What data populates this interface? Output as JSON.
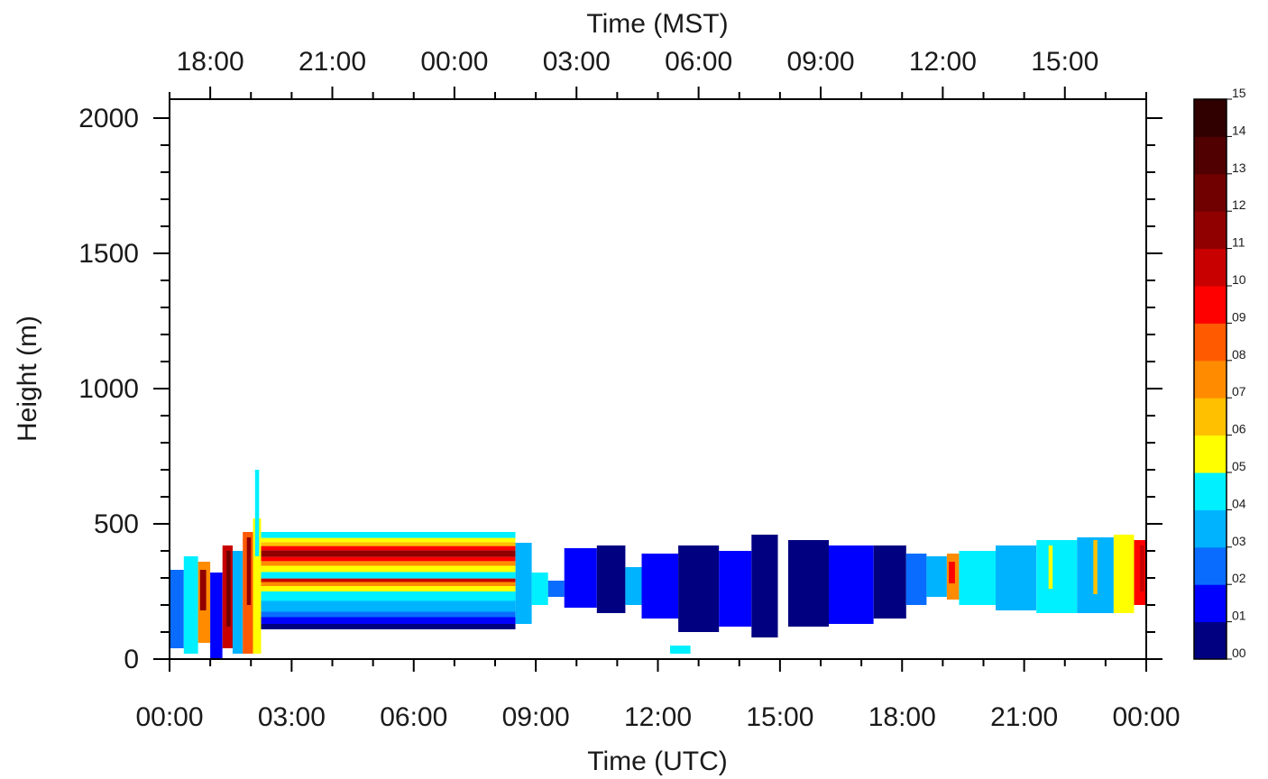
{
  "chart_data": {
    "type": "heatmap",
    "top_axis": {
      "label": "Time (MST)",
      "ticks": [
        "18:00",
        "21:00",
        "00:00",
        "03:00",
        "06:00",
        "09:00",
        "12:00",
        "15:00"
      ],
      "tick_hours_utc": [
        1,
        4,
        7,
        10,
        13,
        16,
        19,
        22
      ]
    },
    "x_axis": {
      "label": "Time (UTC)",
      "ticks": [
        "00:00",
        "03:00",
        "06:00",
        "09:00",
        "12:00",
        "15:00",
        "18:00",
        "21:00",
        "00:00"
      ],
      "range_hours": [
        0,
        24
      ]
    },
    "y_axis": {
      "label": "Height (m)",
      "ticks": [
        "0",
        "500",
        "1000",
        "1500",
        "2000"
      ],
      "tick_values": [
        0,
        500,
        1000,
        1500,
        2000
      ],
      "range": [
        0,
        2000
      ]
    },
    "colorbar": {
      "labels": [
        "00",
        "01",
        "02",
        "03",
        "04",
        "05",
        "06",
        "07",
        "08",
        "09",
        "10",
        "11",
        "12",
        "13",
        "14",
        "15"
      ],
      "colors": [
        "#000080",
        "#0000ff",
        "#0a6cff",
        "#00b3ff",
        "#00f0ff",
        "#ffff00",
        "#ffc000",
        "#ff8c00",
        "#ff5a00",
        "#ff0000",
        "#c80000",
        "#900000",
        "#700000",
        "#500000",
        "#300000"
      ]
    },
    "bands": [
      {
        "t0": 2.25,
        "t1": 8.5,
        "h0": 110,
        "h1": 130,
        "level": 0
      },
      {
        "t0": 2.25,
        "t1": 8.5,
        "h0": 130,
        "h1": 155,
        "level": 1
      },
      {
        "t0": 2.25,
        "t1": 8.5,
        "h0": 155,
        "h1": 175,
        "level": 2
      },
      {
        "t0": 2.25,
        "t1": 8.5,
        "h0": 175,
        "h1": 215,
        "level": 3
      },
      {
        "t0": 2.25,
        "t1": 8.5,
        "h0": 215,
        "h1": 250,
        "level": 4
      },
      {
        "t0": 2.25,
        "t1": 8.5,
        "h0": 250,
        "h1": 270,
        "level": 5
      },
      {
        "t0": 2.25,
        "t1": 8.5,
        "h0": 270,
        "h1": 285,
        "level": 7
      },
      {
        "t0": 2.25,
        "t1": 8.5,
        "h0": 285,
        "h1": 298,
        "level": 10
      },
      {
        "t0": 2.25,
        "t1": 8.5,
        "h0": 298,
        "h1": 322,
        "level": 4
      },
      {
        "t0": 2.25,
        "t1": 8.5,
        "h0": 322,
        "h1": 345,
        "level": 5
      },
      {
        "t0": 2.25,
        "t1": 8.5,
        "h0": 345,
        "h1": 362,
        "level": 7
      },
      {
        "t0": 2.25,
        "t1": 8.5,
        "h0": 362,
        "h1": 378,
        "level": 9
      },
      {
        "t0": 2.25,
        "t1": 8.5,
        "h0": 378,
        "h1": 402,
        "level": 11
      },
      {
        "t0": 2.25,
        "t1": 8.5,
        "h0": 402,
        "h1": 418,
        "level": 9
      },
      {
        "t0": 2.25,
        "t1": 8.5,
        "h0": 418,
        "h1": 432,
        "level": 6
      },
      {
        "t0": 2.25,
        "t1": 8.5,
        "h0": 432,
        "h1": 448,
        "level": 5
      },
      {
        "t0": 2.25,
        "t1": 8.5,
        "h0": 448,
        "h1": 470,
        "level": 4
      }
    ],
    "blocks": [
      {
        "t0": 0.0,
        "t1": 0.35,
        "h0": 40,
        "h1": 330,
        "level": 2
      },
      {
        "t0": 0.35,
        "t1": 0.7,
        "h0": 20,
        "h1": 380,
        "level": 4
      },
      {
        "t0": 0.7,
        "t1": 1.0,
        "h0": 60,
        "h1": 360,
        "level": 7
      },
      {
        "t0": 1.0,
        "t1": 1.3,
        "h0": 0,
        "h1": 320,
        "level": 1
      },
      {
        "t0": 1.3,
        "t1": 1.55,
        "h0": 40,
        "h1": 420,
        "level": 10
      },
      {
        "t0": 1.55,
        "t1": 1.8,
        "h0": 20,
        "h1": 400,
        "level": 3
      },
      {
        "t0": 1.8,
        "t1": 2.05,
        "h0": 20,
        "h1": 470,
        "level": 8
      },
      {
        "t0": 2.05,
        "t1": 2.25,
        "h0": 20,
        "h1": 520,
        "level": 5
      },
      {
        "t0": 8.5,
        "t1": 8.9,
        "h0": 130,
        "h1": 430,
        "level": 3
      },
      {
        "t0": 8.9,
        "t1": 9.3,
        "h0": 200,
        "h1": 320,
        "level": 4
      },
      {
        "t0": 9.3,
        "t1": 9.7,
        "h0": 230,
        "h1": 290,
        "level": 2
      },
      {
        "t0": 9.7,
        "t1": 10.5,
        "h0": 190,
        "h1": 410,
        "level": 1
      },
      {
        "t0": 10.5,
        "t1": 11.2,
        "h0": 170,
        "h1": 420,
        "level": 0
      },
      {
        "t0": 11.2,
        "t1": 11.6,
        "h0": 200,
        "h1": 340,
        "level": 3
      },
      {
        "t0": 11.6,
        "t1": 12.5,
        "h0": 150,
        "h1": 390,
        "level": 1
      },
      {
        "t0": 12.5,
        "t1": 13.5,
        "h0": 100,
        "h1": 420,
        "level": 0
      },
      {
        "t0": 13.5,
        "t1": 14.3,
        "h0": 120,
        "h1": 400,
        "level": 1
      },
      {
        "t0": 14.3,
        "t1": 14.95,
        "h0": 80,
        "h1": 460,
        "level": 0
      },
      {
        "t0": 15.2,
        "t1": 16.2,
        "h0": 120,
        "h1": 440,
        "level": 0
      },
      {
        "t0": 16.2,
        "t1": 17.3,
        "h0": 130,
        "h1": 420,
        "level": 1
      },
      {
        "t0": 17.3,
        "t1": 18.1,
        "h0": 150,
        "h1": 420,
        "level": 0
      },
      {
        "t0": 18.1,
        "t1": 18.6,
        "h0": 200,
        "h1": 390,
        "level": 2
      },
      {
        "t0": 18.6,
        "t1": 19.1,
        "h0": 230,
        "h1": 380,
        "level": 3
      },
      {
        "t0": 19.1,
        "t1": 19.4,
        "h0": 220,
        "h1": 390,
        "level": 7
      },
      {
        "t0": 19.4,
        "t1": 20.3,
        "h0": 200,
        "h1": 400,
        "level": 4
      },
      {
        "t0": 20.3,
        "t1": 21.3,
        "h0": 180,
        "h1": 420,
        "level": 3
      },
      {
        "t0": 21.3,
        "t1": 22.3,
        "h0": 170,
        "h1": 440,
        "level": 4
      },
      {
        "t0": 22.3,
        "t1": 23.2,
        "h0": 170,
        "h1": 450,
        "level": 3
      },
      {
        "t0": 23.2,
        "t1": 23.7,
        "h0": 170,
        "h1": 460,
        "level": 5
      },
      {
        "t0": 23.7,
        "t1": 24.0,
        "h0": 200,
        "h1": 440,
        "level": 9
      }
    ],
    "streaks": [
      {
        "t0": 0.75,
        "t1": 0.9,
        "h0": 180,
        "h1": 330,
        "level": 11
      },
      {
        "t0": 1.4,
        "t1": 1.5,
        "h0": 120,
        "h1": 400,
        "level": 12
      },
      {
        "t0": 1.9,
        "t1": 2.0,
        "h0": 200,
        "h1": 450,
        "level": 11
      },
      {
        "t0": 2.1,
        "t1": 2.2,
        "h0": 380,
        "h1": 700,
        "level": 4
      },
      {
        "t0": 19.15,
        "t1": 19.3,
        "h0": 280,
        "h1": 360,
        "level": 9
      },
      {
        "t0": 21.6,
        "t1": 21.7,
        "h0": 260,
        "h1": 420,
        "level": 5
      },
      {
        "t0": 22.7,
        "t1": 22.8,
        "h0": 240,
        "h1": 440,
        "level": 6
      },
      {
        "t0": 23.55,
        "t1": 23.65,
        "h0": 220,
        "h1": 420,
        "level": 5
      },
      {
        "t0": 23.85,
        "t1": 23.95,
        "h0": 250,
        "h1": 420,
        "level": 10
      },
      {
        "t0": 12.3,
        "t1": 12.8,
        "h0": 20,
        "h1": 50,
        "level": 4
      }
    ],
    "gaps": [
      {
        "t0": 14.95,
        "t1": 15.2,
        "h0": 60,
        "h1": 480
      }
    ]
  }
}
